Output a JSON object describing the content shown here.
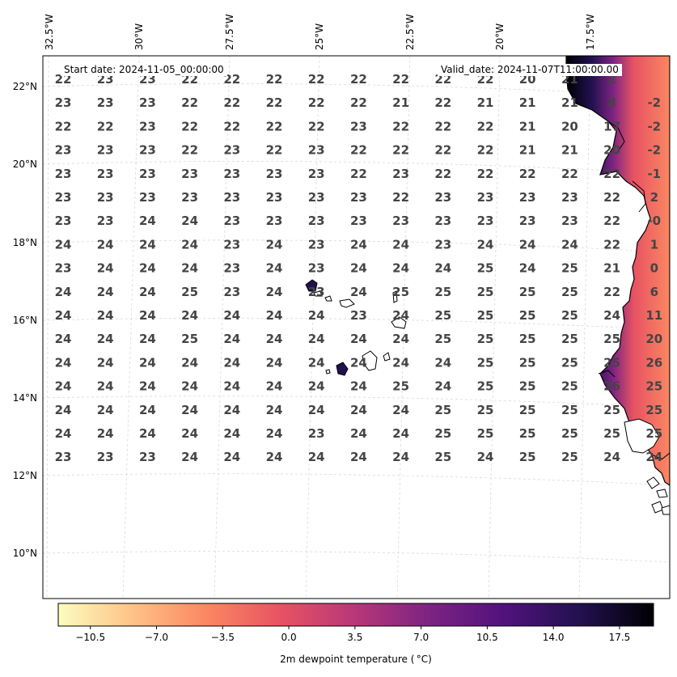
{
  "header": {
    "start_date": "Start date: 2024-11-05_00:00:00",
    "valid_date": "Valid_date: 2024-11-07T11:00:00.00"
  },
  "longitude_labels": [
    "32.5°W",
    "30°W",
    "27.5°W",
    "25°W",
    "22.5°W",
    "20°W",
    "17.5°W"
  ],
  "latitude_labels": [
    "22°N",
    "20°N",
    "18°N",
    "16°N",
    "14°N",
    "12°N",
    "10°N"
  ],
  "grid_values": [
    [
      "22",
      "23",
      "23",
      "22",
      "22",
      "22",
      "22",
      "22",
      "22",
      "22",
      "22",
      "20",
      "21",
      "2"
    ],
    [
      "23",
      "23",
      "23",
      "22",
      "22",
      "22",
      "22",
      "22",
      "21",
      "22",
      "21",
      "21",
      "21",
      "8",
      "-2"
    ],
    [
      "22",
      "22",
      "23",
      "22",
      "22",
      "22",
      "22",
      "23",
      "22",
      "22",
      "22",
      "21",
      "20",
      "17",
      "-2"
    ],
    [
      "23",
      "23",
      "23",
      "22",
      "23",
      "22",
      "23",
      "22",
      "22",
      "22",
      "22",
      "21",
      "21",
      "20",
      "-2"
    ],
    [
      "23",
      "23",
      "23",
      "23",
      "23",
      "23",
      "23",
      "22",
      "23",
      "22",
      "22",
      "22",
      "22",
      "22",
      "-1"
    ],
    [
      "23",
      "23",
      "23",
      "23",
      "23",
      "23",
      "23",
      "23",
      "22",
      "23",
      "23",
      "23",
      "23",
      "22",
      "2"
    ],
    [
      "23",
      "23",
      "24",
      "24",
      "23",
      "23",
      "23",
      "23",
      "23",
      "23",
      "23",
      "23",
      "23",
      "22",
      "-0"
    ],
    [
      "24",
      "24",
      "24",
      "24",
      "23",
      "24",
      "23",
      "24",
      "24",
      "23",
      "24",
      "24",
      "24",
      "22",
      "1"
    ],
    [
      "23",
      "24",
      "24",
      "24",
      "23",
      "24",
      "23",
      "24",
      "24",
      "24",
      "25",
      "24",
      "25",
      "21",
      "0"
    ],
    [
      "24",
      "24",
      "24",
      "25",
      "23",
      "24",
      "23",
      "24",
      "25",
      "25",
      "25",
      "25",
      "25",
      "22",
      "6"
    ],
    [
      "24",
      "24",
      "24",
      "24",
      "24",
      "24",
      "24",
      "23",
      "24",
      "25",
      "25",
      "25",
      "25",
      "24",
      "11"
    ],
    [
      "24",
      "24",
      "24",
      "25",
      "24",
      "24",
      "24",
      "24",
      "24",
      "25",
      "25",
      "25",
      "25",
      "25",
      "20"
    ],
    [
      "24",
      "24",
      "24",
      "24",
      "24",
      "24",
      "24",
      "24",
      "24",
      "24",
      "25",
      "25",
      "25",
      "25",
      "26"
    ],
    [
      "24",
      "24",
      "24",
      "24",
      "24",
      "24",
      "24",
      "24",
      "25",
      "24",
      "25",
      "25",
      "25",
      "26",
      "25"
    ],
    [
      "24",
      "24",
      "24",
      "24",
      "24",
      "24",
      "24",
      "24",
      "24",
      "25",
      "25",
      "25",
      "25",
      "25",
      "25"
    ],
    [
      "24",
      "24",
      "24",
      "24",
      "24",
      "24",
      "23",
      "24",
      "24",
      "25",
      "25",
      "25",
      "25",
      "25",
      "25"
    ],
    [
      "23",
      "23",
      "23",
      "24",
      "24",
      "24",
      "24",
      "24",
      "24",
      "25",
      "24",
      "25",
      "25",
      "24",
      "24"
    ]
  ],
  "colorbar": {
    "label": "2m dewpoint temperature ($^\\circ$C)",
    "label_display": "2m dewpoint temperature ( °C)",
    "tick_labels": [
      "−10.5",
      "−7.0",
      "−3.5",
      "0.0",
      "3.5",
      "7.0",
      "10.5",
      "14.0",
      "17.5"
    ],
    "tick_values": [
      -10.5,
      -7.0,
      -3.5,
      0.0,
      3.5,
      7.0,
      10.5,
      14.0,
      17.5
    ],
    "range": [
      -12.2,
      19.3
    ],
    "colormap": "magma_r",
    "colors": [
      "#fcfdbf",
      "#fec287",
      "#fb8761",
      "#e75263",
      "#b73779",
      "#7c2382",
      "#51127c",
      "#221150",
      "#000004"
    ]
  },
  "ocean_color": "#ffffff",
  "coastline_color": "#000000",
  "gridline_color": "#d9d9d9"
}
